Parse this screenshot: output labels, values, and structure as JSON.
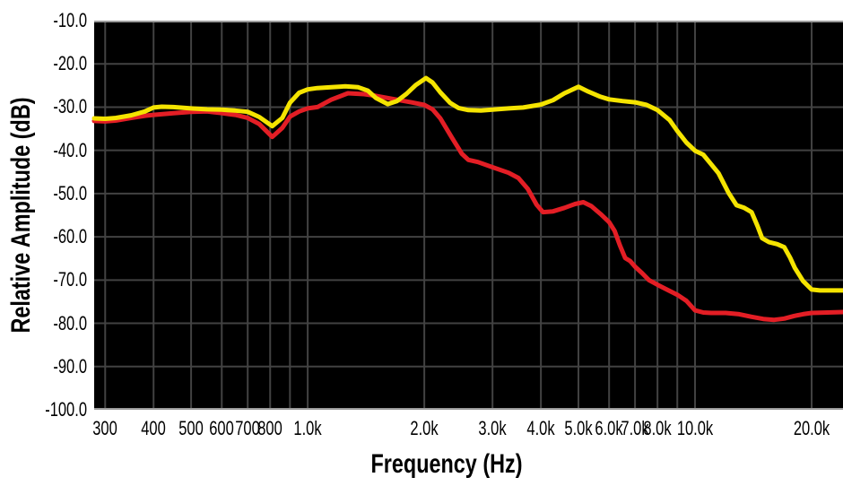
{
  "page": {
    "background": "#ffffff"
  },
  "chart_data": {
    "type": "line",
    "title": "",
    "xlabel": "Frequency (Hz)",
    "ylabel": "Relative Amplitude (dB)",
    "x_scale": "log",
    "xlim": [
      281,
      24100
    ],
    "ylim": [
      -10,
      -100
    ],
    "grid": true,
    "legend": "none",
    "colors": {
      "plot_background": "#000000",
      "grid": "#424242",
      "plot_edge": "#9b9b9b",
      "yellow_curve": "#f5e400",
      "red_curve": "#e31e25",
      "text": "#000000"
    },
    "x_gridlines": [
      300,
      400,
      500,
      600,
      700,
      800,
      900,
      1000,
      2000,
      3000,
      4000,
      5000,
      6000,
      7000,
      8000,
      9000,
      10000,
      20000
    ],
    "y_gridlines": [
      -20,
      -30,
      -40,
      -50,
      -60,
      -70,
      -80,
      -90
    ],
    "x_ticks": [
      {
        "value": 300,
        "label": "300"
      },
      {
        "value": 400,
        "label": "400"
      },
      {
        "value": 500,
        "label": "500"
      },
      {
        "value": 600,
        "label": "600"
      },
      {
        "value": 700,
        "label": "700"
      },
      {
        "value": 800,
        "label": "800"
      },
      {
        "value": 1000,
        "label": "1.0k"
      },
      {
        "value": 2000,
        "label": "2.0k"
      },
      {
        "value": 3000,
        "label": "3.0k"
      },
      {
        "value": 4000,
        "label": "4.0k"
      },
      {
        "value": 5000,
        "label": "5.0k"
      },
      {
        "value": 6000,
        "label": "6.0k"
      },
      {
        "value": 7000,
        "label": "7.0k"
      },
      {
        "value": 8000,
        "label": "8.0k"
      },
      {
        "value": 10000,
        "label": "10.0k"
      },
      {
        "value": 20000,
        "label": "20.0k"
      }
    ],
    "y_ticks": [
      {
        "value": -10,
        "label": "-10.0"
      },
      {
        "value": -20,
        "label": "-20.0"
      },
      {
        "value": -30,
        "label": "-30.0"
      },
      {
        "value": -40,
        "label": "-40.0"
      },
      {
        "value": -50,
        "label": "-50.0"
      },
      {
        "value": -60,
        "label": "-60.0"
      },
      {
        "value": -70,
        "label": "-70.0"
      },
      {
        "value": -80,
        "label": "-80.0"
      },
      {
        "value": -90,
        "label": "-90.0"
      },
      {
        "value": -100,
        "label": "-100.0"
      }
    ],
    "series": [
      {
        "name": "red-curve",
        "color_key": "red_curve",
        "points": [
          [
            281,
            -33.2
          ],
          [
            300,
            -33.3
          ],
          [
            320,
            -33.1
          ],
          [
            350,
            -32.5
          ],
          [
            380,
            -32.0
          ],
          [
            400,
            -31.8
          ],
          [
            450,
            -31.4
          ],
          [
            500,
            -31.1
          ],
          [
            550,
            -31.0
          ],
          [
            600,
            -31.4
          ],
          [
            650,
            -31.8
          ],
          [
            700,
            -32.5
          ],
          [
            750,
            -33.9
          ],
          [
            810,
            -36.9
          ],
          [
            860,
            -34.8
          ],
          [
            900,
            -32.2
          ],
          [
            950,
            -31.0
          ],
          [
            1000,
            -30.3
          ],
          [
            1060,
            -30.0
          ],
          [
            1150,
            -28.3
          ],
          [
            1270,
            -26.8
          ],
          [
            1400,
            -27.0
          ],
          [
            1500,
            -27.4
          ],
          [
            1700,
            -28.3
          ],
          [
            1850,
            -28.9
          ],
          [
            2000,
            -29.5
          ],
          [
            2100,
            -30.5
          ],
          [
            2200,
            -32.6
          ],
          [
            2350,
            -36.9
          ],
          [
            2500,
            -40.8
          ],
          [
            2600,
            -42.2
          ],
          [
            2750,
            -42.7
          ],
          [
            3000,
            -43.9
          ],
          [
            3300,
            -45.2
          ],
          [
            3500,
            -46.4
          ],
          [
            3700,
            -48.9
          ],
          [
            3900,
            -52.6
          ],
          [
            4050,
            -54.3
          ],
          [
            4300,
            -54.1
          ],
          [
            4600,
            -53.3
          ],
          [
            4900,
            -52.4
          ],
          [
            5150,
            -52.0
          ],
          [
            5400,
            -52.9
          ],
          [
            5700,
            -54.7
          ],
          [
            6000,
            -56.6
          ],
          [
            6200,
            -58.6
          ],
          [
            6400,
            -62.0
          ],
          [
            6600,
            -64.9
          ],
          [
            6800,
            -65.6
          ],
          [
            7000,
            -66.9
          ],
          [
            7300,
            -68.4
          ],
          [
            7600,
            -70.0
          ],
          [
            8000,
            -71.1
          ],
          [
            8500,
            -72.3
          ],
          [
            9000,
            -73.4
          ],
          [
            9500,
            -74.8
          ],
          [
            10000,
            -77.0
          ],
          [
            10500,
            -77.5
          ],
          [
            11000,
            -77.6
          ],
          [
            12000,
            -77.6
          ],
          [
            13000,
            -77.9
          ],
          [
            14000,
            -78.5
          ],
          [
            15000,
            -79.0
          ],
          [
            16000,
            -79.2
          ],
          [
            17000,
            -78.9
          ],
          [
            18000,
            -78.3
          ],
          [
            19000,
            -77.9
          ],
          [
            20000,
            -77.6
          ],
          [
            22000,
            -77.5
          ],
          [
            24100,
            -77.4
          ]
        ]
      },
      {
        "name": "yellow-curve",
        "color_key": "yellow_curve",
        "points": [
          [
            281,
            -32.6
          ],
          [
            300,
            -32.7
          ],
          [
            320,
            -32.5
          ],
          [
            350,
            -31.9
          ],
          [
            380,
            -31.0
          ],
          [
            400,
            -30.1
          ],
          [
            420,
            -29.9
          ],
          [
            450,
            -30.0
          ],
          [
            500,
            -30.3
          ],
          [
            550,
            -30.5
          ],
          [
            600,
            -30.6
          ],
          [
            650,
            -30.8
          ],
          [
            700,
            -31.1
          ],
          [
            750,
            -32.3
          ],
          [
            810,
            -34.4
          ],
          [
            860,
            -32.5
          ],
          [
            900,
            -29.0
          ],
          [
            950,
            -26.7
          ],
          [
            1000,
            -25.9
          ],
          [
            1060,
            -25.6
          ],
          [
            1150,
            -25.4
          ],
          [
            1250,
            -25.2
          ],
          [
            1350,
            -25.4
          ],
          [
            1430,
            -26.2
          ],
          [
            1500,
            -27.9
          ],
          [
            1610,
            -29.3
          ],
          [
            1700,
            -28.6
          ],
          [
            1800,
            -26.9
          ],
          [
            1900,
            -24.9
          ],
          [
            2020,
            -23.3
          ],
          [
            2100,
            -24.3
          ],
          [
            2200,
            -26.6
          ],
          [
            2330,
            -29.0
          ],
          [
            2450,
            -30.2
          ],
          [
            2600,
            -30.7
          ],
          [
            2800,
            -30.8
          ],
          [
            3000,
            -30.6
          ],
          [
            3300,
            -30.3
          ],
          [
            3600,
            -30.1
          ],
          [
            4000,
            -29.4
          ],
          [
            4300,
            -28.4
          ],
          [
            4600,
            -26.8
          ],
          [
            5000,
            -25.3
          ],
          [
            5300,
            -26.4
          ],
          [
            5700,
            -27.6
          ],
          [
            6000,
            -28.2
          ],
          [
            6500,
            -28.6
          ],
          [
            7000,
            -28.9
          ],
          [
            7500,
            -29.5
          ],
          [
            8000,
            -30.7
          ],
          [
            8600,
            -33.0
          ],
          [
            9000,
            -35.5
          ],
          [
            9500,
            -38.2
          ],
          [
            10000,
            -40.1
          ],
          [
            10500,
            -41.0
          ],
          [
            11000,
            -43.2
          ],
          [
            11500,
            -45.3
          ],
          [
            12200,
            -49.8
          ],
          [
            12800,
            -52.7
          ],
          [
            13400,
            -53.3
          ],
          [
            14000,
            -54.3
          ],
          [
            14500,
            -57.5
          ],
          [
            14900,
            -60.3
          ],
          [
            15500,
            -61.2
          ],
          [
            16300,
            -61.7
          ],
          [
            17000,
            -62.4
          ],
          [
            17600,
            -64.8
          ],
          [
            18100,
            -67.2
          ],
          [
            19000,
            -70.2
          ],
          [
            20000,
            -72.2
          ],
          [
            21000,
            -72.4
          ],
          [
            22500,
            -72.4
          ],
          [
            24100,
            -72.4
          ]
        ]
      }
    ]
  }
}
